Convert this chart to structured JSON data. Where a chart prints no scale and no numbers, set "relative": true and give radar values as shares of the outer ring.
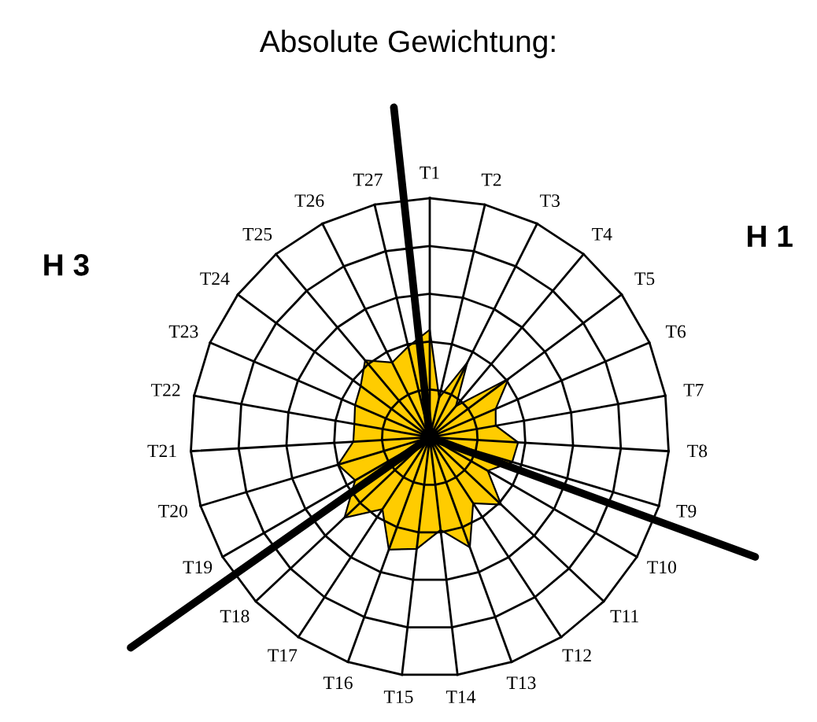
{
  "chart_data": {
    "type": "radar",
    "title": "Absolute Gewichtung:",
    "relative": true,
    "grid": true,
    "categories": [
      "T1",
      "T2",
      "T3",
      "T4",
      "T5",
      "T6",
      "T7",
      "T8",
      "T9",
      "T10",
      "T11",
      "T12",
      "T13",
      "T14",
      "T15",
      "T16",
      "T17",
      "T18",
      "T19",
      "T20",
      "T21",
      "T22",
      "T23",
      "T24",
      "T25",
      "T26",
      "T27"
    ],
    "series": [
      {
        "color": "#ffcc00",
        "values": [
          0.45,
          0.17,
          0.35,
          0.17,
          0.41,
          0.3,
          0.28,
          0.37,
          0.36,
          0.28,
          0.41,
          0.33,
          0.49,
          0.39,
          0.47,
          0.5,
          0.36,
          0.49,
          0.36,
          0.4,
          0.32,
          0.32,
          0.34,
          0.36,
          0.42,
          0.35,
          0.39
        ]
      }
    ],
    "annotations": [
      "H 1",
      "H 3"
    ]
  }
}
